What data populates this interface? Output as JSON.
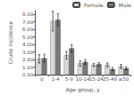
{
  "chart_data": {
    "type": "bar",
    "xlabel": "Age group, y",
    "ylabel": "Crude incidence",
    "categories": [
      "0",
      "1-4",
      "5-9",
      "10-14",
      "15-24",
      "25-49",
      "≥50"
    ],
    "series": [
      {
        "name": "Female",
        "color": "#d8d8d8",
        "values": [
          2.1,
          7.1,
          2.6,
          1.5,
          1.3,
          1.3,
          1.1
        ],
        "errors_lo": [
          0.55,
          1.3,
          0.5,
          0.35,
          0.2,
          0.25,
          0.25
        ],
        "errors_hi": [
          0.55,
          1.3,
          0.5,
          0.35,
          0.2,
          0.25,
          0.25
        ]
      },
      {
        "name": "Male",
        "color": "#787878",
        "values": [
          2.2,
          7.3,
          3.5,
          1.7,
          1.4,
          0.75,
          0.85
        ],
        "errors_lo": [
          0.5,
          0.8,
          0.5,
          0.3,
          0.2,
          0.2,
          0.2
        ],
        "errors_hi": [
          0.5,
          0.8,
          0.5,
          0.3,
          0.2,
          0.2,
          0.2
        ]
      }
    ],
    "ylim": [
      0,
      8.5
    ],
    "yticks": [
      {
        "value": 0,
        "label": "0.00"
      },
      {
        "value": 1,
        "label": "1.00"
      },
      {
        "value": 2,
        "label": "2.00"
      },
      {
        "value": 3,
        "label": "3.00"
      },
      {
        "value": 4,
        "label": "4.00"
      },
      {
        "value": 5,
        "label": "5.00"
      },
      {
        "value": 6,
        "label": "6.00"
      },
      {
        "value": 7,
        "label": "7.00"
      },
      {
        "value": 8,
        "label": "8.00"
      }
    ],
    "grid": false,
    "legend": "upper right"
  }
}
